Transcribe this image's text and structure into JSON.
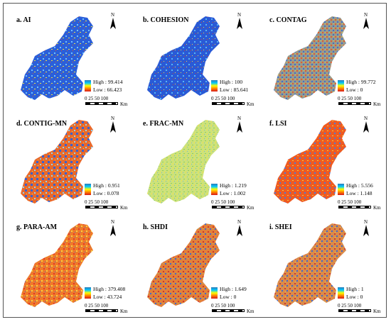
{
  "figure": {
    "north_symbol": "N",
    "scale_ticks": "0 25 50     100",
    "scale_unit": "Km",
    "panels": [
      {
        "title": "a. AI",
        "high": "High : 99.414",
        "low": "Low : 66.423",
        "palette": "blue-dominant"
      },
      {
        "title": "b. COHESION",
        "high": "High : 100",
        "low": "Low : 85.641",
        "palette": "blue-dominant"
      },
      {
        "title": "c. CONTAG",
        "high": "High : 99.772",
        "low": "Low : 0",
        "palette": "mixed-gray"
      },
      {
        "title": "d. CONTIG-MN",
        "high": "High : 0.951",
        "low": "Low : 0.078",
        "palette": "orange-blue"
      },
      {
        "title": "e. FRAC-MN",
        "high": "High : 1.219",
        "low": "Low : 1.002",
        "palette": "yellow-green"
      },
      {
        "title": "f. LSI",
        "high": "High : 5.556",
        "low": "Low : 1.148",
        "palette": "orange-red"
      },
      {
        "title": "g. PARA-AM",
        "high": "High : 379.408",
        "low": "Low : 43.724",
        "palette": "orange-red"
      },
      {
        "title": "h. SHDI",
        "high": "High : 1.649",
        "low": "Low : 0",
        "palette": "mixed-orange"
      },
      {
        "title": "i. SHEI",
        "high": "High : 1",
        "low": "Low : 0",
        "palette": "mixed-orange"
      }
    ]
  }
}
